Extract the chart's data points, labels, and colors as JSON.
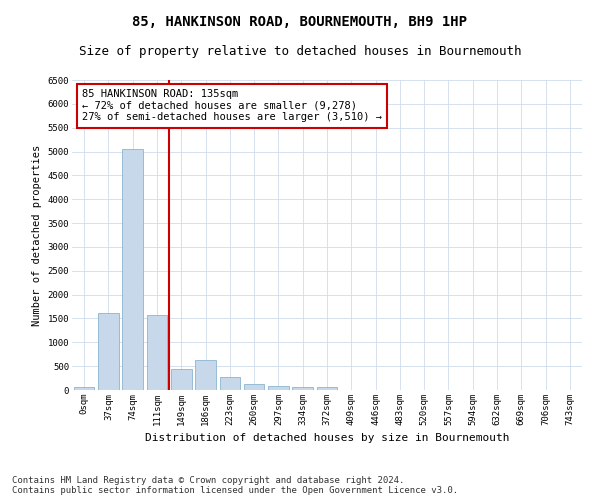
{
  "title": "85, HANKINSON ROAD, BOURNEMOUTH, BH9 1HP",
  "subtitle": "Size of property relative to detached houses in Bournemouth",
  "xlabel": "Distribution of detached houses by size in Bournemouth",
  "ylabel": "Number of detached properties",
  "bar_color": "#c8d8eb",
  "bar_edge_color": "#7aaac8",
  "grid_color": "#d0dcea",
  "vline_color": "#cc0000",
  "vline_x": 3.5,
  "categories": [
    "0sqm",
    "37sqm",
    "74sqm",
    "111sqm",
    "149sqm",
    "186sqm",
    "223sqm",
    "260sqm",
    "297sqm",
    "334sqm",
    "372sqm",
    "409sqm",
    "446sqm",
    "483sqm",
    "520sqm",
    "557sqm",
    "594sqm",
    "632sqm",
    "669sqm",
    "706sqm",
    "743sqm"
  ],
  "values": [
    60,
    1620,
    5050,
    1580,
    430,
    620,
    270,
    120,
    90,
    70,
    60,
    0,
    0,
    0,
    0,
    0,
    0,
    0,
    0,
    0,
    0
  ],
  "ylim": [
    0,
    6500
  ],
  "yticks": [
    0,
    500,
    1000,
    1500,
    2000,
    2500,
    3000,
    3500,
    4000,
    4500,
    5000,
    5500,
    6000,
    6500
  ],
  "annotation_text": "85 HANKINSON ROAD: 135sqm\n← 72% of detached houses are smaller (9,278)\n27% of semi-detached houses are larger (3,510) →",
  "annotation_box_color": "#ffffff",
  "annotation_box_edge": "#cc0000",
  "footer_line1": "Contains HM Land Registry data © Crown copyright and database right 2024.",
  "footer_line2": "Contains public sector information licensed under the Open Government Licence v3.0.",
  "title_fontsize": 10,
  "subtitle_fontsize": 9,
  "xlabel_fontsize": 8,
  "ylabel_fontsize": 7.5,
  "tick_fontsize": 6.5,
  "annot_fontsize": 7.5,
  "footer_fontsize": 6.5
}
